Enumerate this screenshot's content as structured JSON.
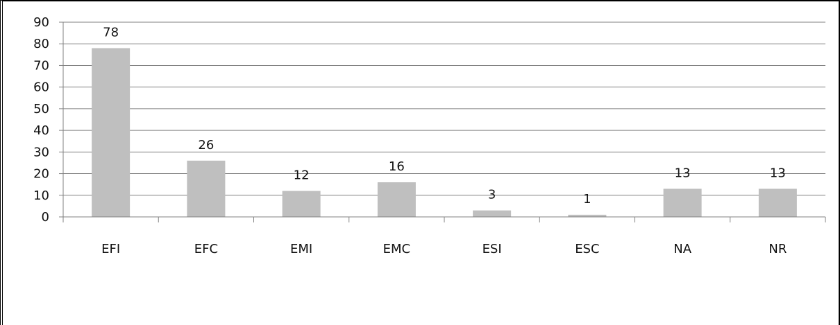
{
  "chart_data": {
    "type": "bar",
    "categories": [
      "EFI",
      "EFC",
      "EMI",
      "EMC",
      "ESI",
      "ESC",
      "NA",
      "NR"
    ],
    "values": [
      78,
      26,
      12,
      16,
      3,
      1,
      13,
      13
    ],
    "ylim": [
      0,
      90
    ],
    "yticks": [
      0,
      10,
      20,
      30,
      40,
      50,
      60,
      70,
      80,
      90
    ],
    "grid": true,
    "bar_color": "#bfbfbf",
    "grid_color": "#808080"
  }
}
